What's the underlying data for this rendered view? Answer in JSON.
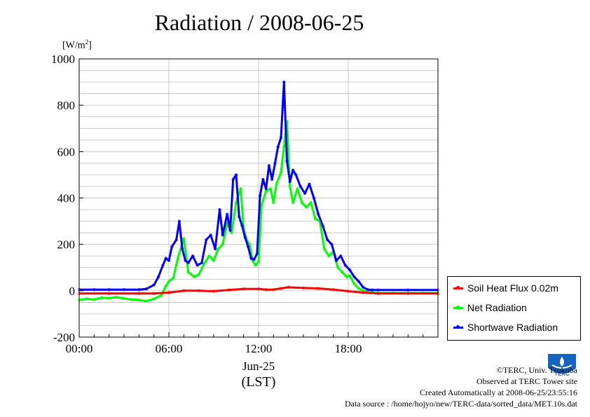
{
  "header": {
    "title": "Radiation / 2008-06-25",
    "unit_prefix": "[W/m",
    "unit_exp": "2",
    "unit_suffix": "]"
  },
  "axis": {
    "date_label": "Jun-25",
    "tz_label": "(LST)"
  },
  "legend": {
    "items": [
      {
        "label": "Soil Heat Flux 0.02m",
        "color": "#ff0000"
      },
      {
        "label": "Net Radiation",
        "color": "#00ff00"
      },
      {
        "label": "Shortwave Radiation",
        "color": "#0000ff"
      }
    ]
  },
  "credits": {
    "line1": "©TERC, Univ. Tsukuba",
    "line2": "Observed at TERC Tower site",
    "line3": "Created Automatically at 2008-06-25/23:55:16",
    "line4": "Data source : /home/hojyo/new/TERC-data/sorted_data/MET.10s.dat"
  },
  "logo": {
    "text": "TERC",
    "color": "#1565c0"
  },
  "chart_data": {
    "type": "line",
    "title": "Radiation / 2008-06-25",
    "ylabel": "[W/m2]",
    "xlabel": "(LST)",
    "xlim": [
      0,
      24
    ],
    "ylim": [
      -200,
      1000
    ],
    "xticks": [
      {
        "v": 0,
        "label": "00:00"
      },
      {
        "v": 6,
        "label": "06:00"
      },
      {
        "v": 12,
        "label": "12:00"
      },
      {
        "v": 18,
        "label": "18:00"
      }
    ],
    "yticks": [
      -200,
      0,
      200,
      400,
      600,
      800,
      1000
    ],
    "grid": true,
    "legend_position": "right-bottom",
    "series": [
      {
        "name": "Soil Heat Flux 0.02m",
        "color": "#ff0000",
        "x": [
          0,
          2,
          4,
          5,
          6,
          7,
          8,
          9,
          10,
          11,
          12,
          12.5,
          13,
          13.5,
          14,
          15,
          16,
          17,
          18,
          19,
          20,
          22,
          24
        ],
        "y": [
          -12,
          -12,
          -12,
          -12,
          -8,
          0,
          0,
          -2,
          3,
          8,
          8,
          5,
          5,
          10,
          15,
          12,
          10,
          5,
          -2,
          -8,
          -12,
          -12,
          -12
        ]
      },
      {
        "name": "Net Radiation",
        "color": "#00ff00",
        "x": [
          0,
          0.5,
          1,
          1.5,
          2,
          2.5,
          3,
          3.5,
          4,
          4.5,
          5,
          5.5,
          5.8,
          6,
          6.3,
          6.6,
          7,
          7.3,
          7.7,
          8,
          8.4,
          8.7,
          9,
          9.3,
          9.6,
          9.9,
          10.2,
          10.5,
          10.8,
          11,
          11.2,
          11.4,
          11.6,
          11.8,
          12,
          12.2,
          12.5,
          12.8,
          13,
          13.2,
          13.5,
          13.7,
          13.9,
          14.1,
          14.3,
          14.6,
          14.9,
          15.2,
          15.5,
          15.8,
          16.1,
          16.4,
          16.7,
          17,
          17.3,
          17.6,
          17.9,
          18.1,
          18.4,
          18.7,
          19,
          19.3,
          19.6,
          20,
          21,
          22,
          23,
          24
        ],
        "y": [
          -40,
          -35,
          -38,
          -30,
          -32,
          -28,
          -33,
          -38,
          -40,
          -45,
          -35,
          -20,
          20,
          40,
          55,
          140,
          225,
          80,
          60,
          70,
          120,
          150,
          130,
          180,
          200,
          290,
          250,
          380,
          440,
          270,
          220,
          200,
          130,
          110,
          125,
          370,
          430,
          440,
          380,
          460,
          510,
          620,
          730,
          450,
          380,
          440,
          380,
          360,
          380,
          310,
          300,
          180,
          150,
          170,
          100,
          80,
          60,
          65,
          30,
          10,
          0,
          -5,
          -8,
          -10,
          -10,
          -10,
          -10,
          -10
        ]
      },
      {
        "name": "Shortwave Radiation",
        "color": "#0000ff",
        "x": [
          0,
          1,
          2,
          3,
          4,
          4.5,
          5,
          5.3,
          5.6,
          5.8,
          6,
          6.2,
          6.5,
          6.7,
          6.9,
          7.1,
          7.3,
          7.6,
          7.9,
          8.2,
          8.5,
          8.8,
          9.1,
          9.4,
          9.6,
          9.9,
          10.1,
          10.3,
          10.5,
          10.7,
          10.9,
          11.1,
          11.3,
          11.5,
          11.7,
          11.9,
          12.1,
          12.3,
          12.5,
          12.7,
          12.9,
          13.1,
          13.3,
          13.5,
          13.7,
          13.9,
          14.1,
          14.3,
          14.5,
          14.8,
          15.1,
          15.4,
          15.7,
          16,
          16.3,
          16.6,
          16.9,
          17.2,
          17.5,
          17.8,
          18.1,
          18.4,
          18.7,
          19,
          19.3,
          19.6,
          20,
          22,
          24
        ],
        "y": [
          5,
          5,
          5,
          5,
          5,
          8,
          25,
          60,
          110,
          140,
          130,
          190,
          220,
          300,
          180,
          130,
          120,
          150,
          110,
          120,
          220,
          240,
          180,
          350,
          240,
          330,
          260,
          480,
          500,
          320,
          280,
          230,
          190,
          140,
          135,
          160,
          410,
          480,
          440,
          540,
          480,
          550,
          620,
          660,
          900,
          560,
          470,
          520,
          500,
          450,
          420,
          460,
          400,
          330,
          280,
          220,
          200,
          130,
          150,
          110,
          90,
          60,
          40,
          15,
          5,
          3,
          3,
          3,
          3
        ]
      }
    ]
  }
}
